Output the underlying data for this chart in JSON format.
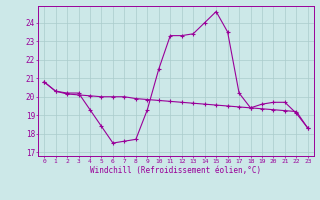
{
  "xlabel": "Windchill (Refroidissement éolien,°C)",
  "bg_color": "#cce8e8",
  "grid_color": "#aacccc",
  "line_color": "#990099",
  "hours": [
    0,
    1,
    2,
    3,
    4,
    5,
    6,
    7,
    8,
    9,
    10,
    11,
    12,
    13,
    14,
    15,
    16,
    17,
    18,
    19,
    20,
    21,
    22,
    23
  ],
  "temp": [
    20.8,
    20.3,
    20.2,
    20.2,
    19.3,
    18.4,
    17.5,
    17.6,
    17.7,
    19.3,
    21.5,
    23.3,
    23.3,
    23.4,
    24.0,
    24.6,
    23.5,
    20.2,
    19.4,
    19.6,
    19.7,
    19.7,
    19.1,
    18.3
  ],
  "windchill": [
    20.8,
    20.3,
    20.15,
    20.1,
    20.05,
    20.0,
    20.0,
    20.0,
    19.9,
    19.85,
    19.8,
    19.75,
    19.7,
    19.65,
    19.6,
    19.55,
    19.5,
    19.45,
    19.4,
    19.35,
    19.3,
    19.25,
    19.2,
    18.3
  ],
  "ylim_min": 16.8,
  "ylim_max": 24.9,
  "yticks": [
    17,
    18,
    19,
    20,
    21,
    22,
    23,
    24
  ]
}
